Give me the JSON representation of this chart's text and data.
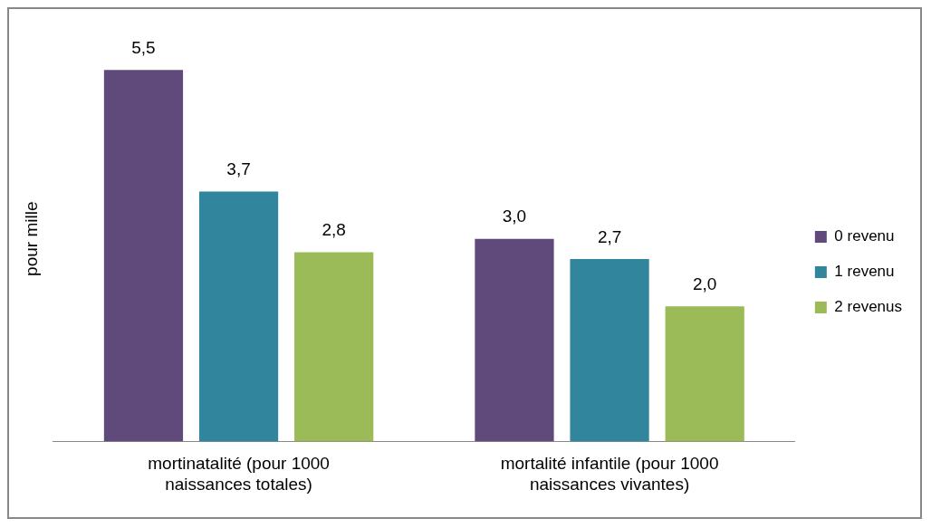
{
  "chart_data": {
    "type": "bar",
    "ylabel": "pour mille",
    "categories": [
      "mortinatalité (pour 1000 naissances totales)",
      "mortalité infantile (pour 1000 naissances vivantes)"
    ],
    "series": [
      {
        "name": "0 revenu",
        "color": "#604a7b",
        "values": [
          5.5,
          3.0
        ],
        "value_labels": [
          "5,5",
          "3,0"
        ]
      },
      {
        "name": "1 revenu",
        "color": "#31859c",
        "values": [
          3.7,
          2.7
        ],
        "value_labels": [
          "3,7",
          "2,7"
        ]
      },
      {
        "name": "2 revenus",
        "color": "#9bbb59",
        "values": [
          2.8,
          2.0
        ],
        "value_labels": [
          "2,8",
          "2,0"
        ]
      }
    ],
    "legend": "right",
    "grid": false
  }
}
